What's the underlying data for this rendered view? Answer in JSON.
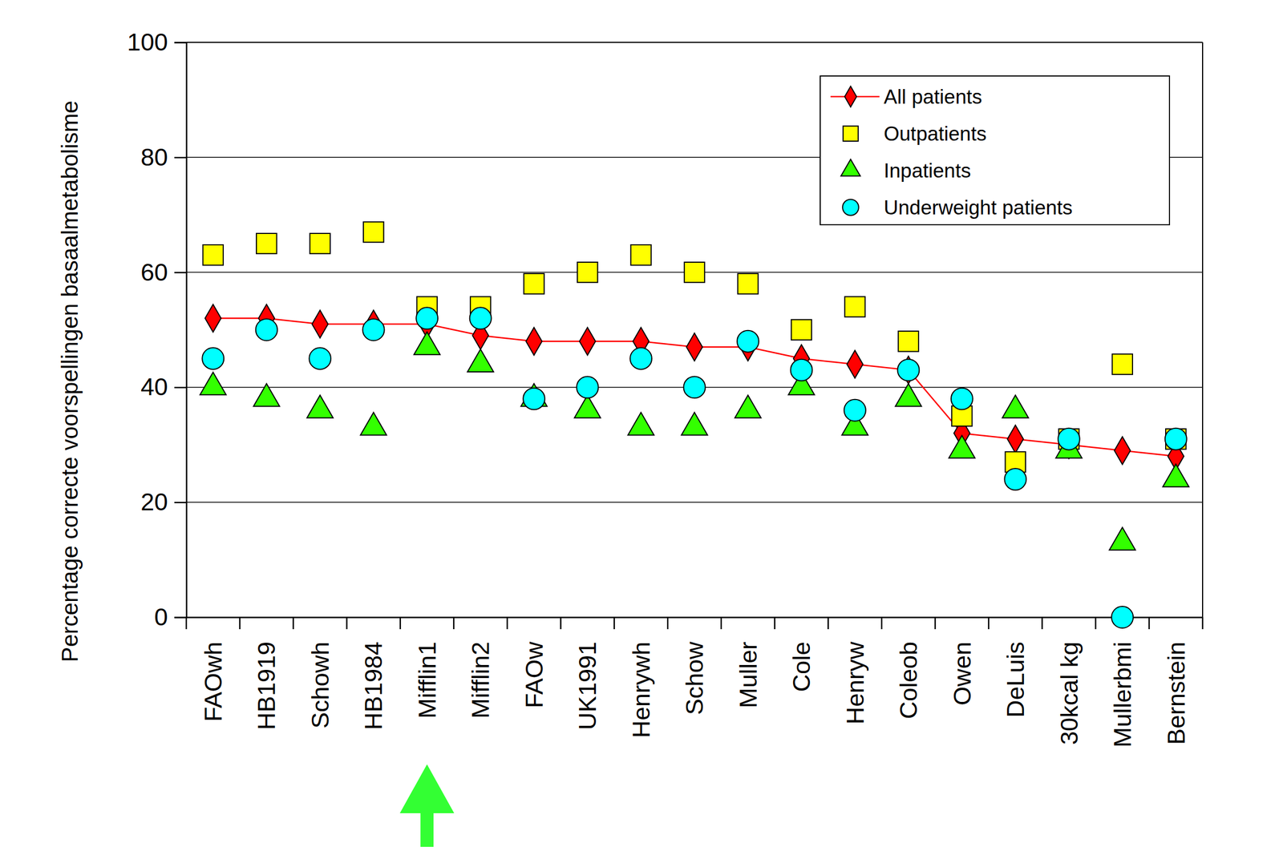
{
  "chart_data": {
    "type": "line",
    "ylabel": "Percentage correcte voorspellingen basaalmetabolisme",
    "categories": [
      "FAOwh",
      "HB1919",
      "Schowh",
      "HB1984",
      "Mifflin1",
      "Mifflin2",
      "FAOw",
      "UK1991",
      "Henrywh",
      "Schow",
      "Muller",
      "Cole",
      "Henryw",
      "Coleob",
      "Owen",
      "DeLuis",
      "30kcal kg",
      "Mullerbmi",
      "Bernstein"
    ],
    "series": [
      {
        "name": "All patients",
        "type": "line",
        "marker": "diamond",
        "color": "#ff0000",
        "values": [
          52,
          52,
          51,
          51,
          51,
          49,
          48,
          48,
          48,
          47,
          47,
          45,
          44,
          43,
          32,
          31,
          30,
          29,
          28
        ]
      },
      {
        "name": "Outpatients",
        "type": "scatter",
        "marker": "square",
        "color": "#ffff00",
        "values": [
          63,
          65,
          65,
          67,
          54,
          54,
          58,
          60,
          63,
          60,
          58,
          50,
          54,
          48,
          35,
          27,
          31,
          44,
          31
        ]
      },
      {
        "name": "Inpatients",
        "type": "scatter",
        "marker": "triangle",
        "color": "#33ff00",
        "values": [
          40,
          38,
          36,
          33,
          47,
          44,
          38,
          36,
          33,
          33,
          36,
          40,
          33,
          38,
          29,
          36,
          29,
          13,
          24
        ]
      },
      {
        "name": "Underweight patients",
        "type": "scatter",
        "marker": "circle",
        "color": "#00ffff",
        "values": [
          45,
          50,
          45,
          50,
          52,
          52,
          38,
          40,
          45,
          40,
          48,
          43,
          36,
          43,
          38,
          24,
          31,
          0,
          31
        ]
      }
    ],
    "ylim": [
      0,
      100
    ],
    "yticks": [
      0,
      20,
      40,
      60,
      80,
      100
    ],
    "grid": true,
    "legend": "top-right"
  }
}
